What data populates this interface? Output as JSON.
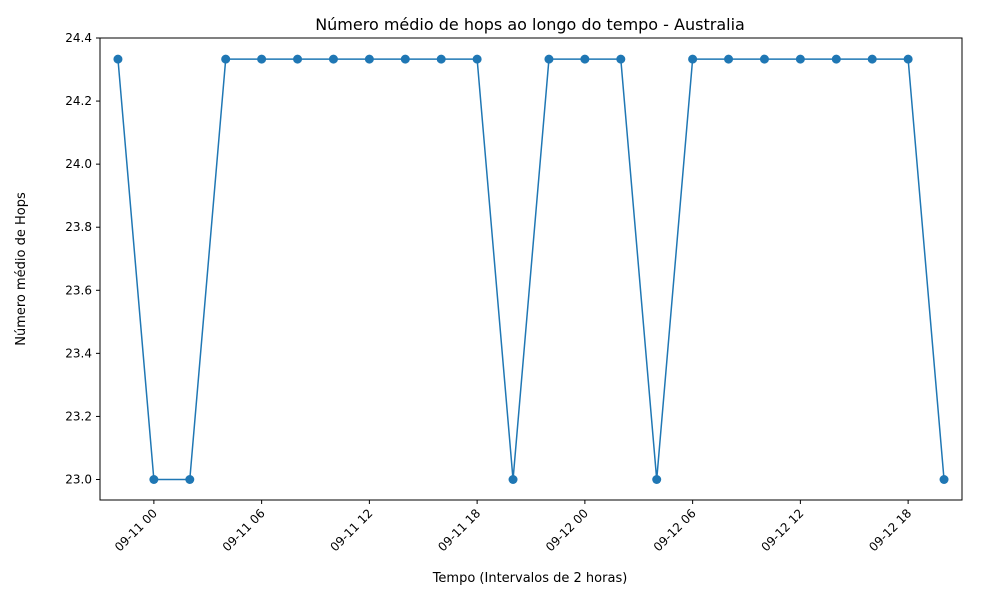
{
  "chart_data": {
    "type": "line",
    "title": "Número médio de hops ao longo do tempo - Australia",
    "xlabel": "Tempo (Intervalos de 2 horas)",
    "ylabel": "Número médio de Hops",
    "ylim": [
      22.935,
      24.4
    ],
    "xlim": [
      "2025-09-10T21:00",
      "2025-09-12T21:00"
    ],
    "grid": false,
    "color": "#1f77b4",
    "yticks": [
      "23.0",
      "23.2",
      "23.4",
      "23.6",
      "23.8",
      "24.0",
      "24.2",
      "24.4"
    ],
    "xticks": [
      {
        "t": "2025-09-11T00:00",
        "label": "09-11 00"
      },
      {
        "t": "2025-09-11T06:00",
        "label": "09-11 06"
      },
      {
        "t": "2025-09-11T12:00",
        "label": "09-11 12"
      },
      {
        "t": "2025-09-11T18:00",
        "label": "09-11 18"
      },
      {
        "t": "2025-09-12T00:00",
        "label": "09-12 00"
      },
      {
        "t": "2025-09-12T06:00",
        "label": "09-12 06"
      },
      {
        "t": "2025-09-12T12:00",
        "label": "09-12 12"
      },
      {
        "t": "2025-09-12T18:00",
        "label": "09-12 18"
      }
    ],
    "series": [
      {
        "x": [
          "2025-09-10T22:00",
          "2025-09-11T00:00",
          "2025-09-11T02:00",
          "2025-09-11T04:00",
          "2025-09-11T06:00",
          "2025-09-11T08:00",
          "2025-09-11T10:00",
          "2025-09-11T12:00",
          "2025-09-11T14:00",
          "2025-09-11T16:00",
          "2025-09-11T18:00",
          "2025-09-11T20:00",
          "2025-09-11T22:00",
          "2025-09-12T00:00",
          "2025-09-12T02:00",
          "2025-09-12T04:00",
          "2025-09-12T06:00",
          "2025-09-12T08:00",
          "2025-09-12T10:00",
          "2025-09-12T12:00",
          "2025-09-12T14:00",
          "2025-09-12T16:00",
          "2025-09-12T18:00",
          "2025-09-12T20:00"
        ],
        "values": [
          24.333,
          23.0,
          23.0,
          24.333,
          24.333,
          24.333,
          24.333,
          24.333,
          24.333,
          24.333,
          24.333,
          23.0,
          24.333,
          24.333,
          24.333,
          23.0,
          24.333,
          24.333,
          24.333,
          24.333,
          24.333,
          24.333,
          24.333,
          23.0
        ]
      }
    ]
  }
}
